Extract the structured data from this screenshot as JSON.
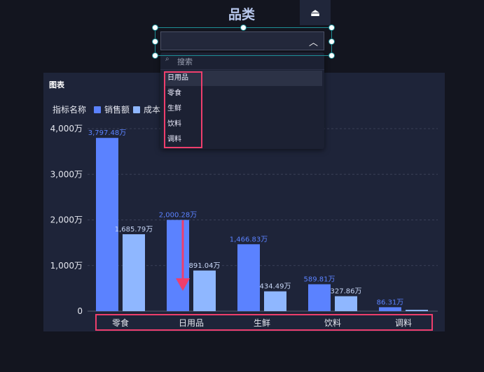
{
  "header": {
    "title": "品类",
    "icon": "clear-filter-icon"
  },
  "dropdown": {
    "value": "",
    "search_placeholder": "搜索",
    "options": [
      "日用品",
      "零食",
      "生鲜",
      "饮料",
      "调料"
    ],
    "hovered": "日用品"
  },
  "panel": {
    "title": "图表"
  },
  "colors": {
    "sales": "#5b82ff",
    "cost": "#8fb7ff",
    "highlight": "#ee3e6c"
  },
  "chart_data": {
    "type": "bar",
    "legend_title": "指标名称",
    "categories": [
      "零食",
      "日用品",
      "生鲜",
      "饮料",
      "调料"
    ],
    "series": [
      {
        "name": "销售额",
        "values": [
          3797.48,
          2000.28,
          1466.83,
          589.81,
          86.31
        ],
        "labels": [
          "3,797.48万",
          "2,000.28万",
          "1,466.83万",
          "589.81万",
          "86.31万"
        ]
      },
      {
        "name": "成本",
        "values": [
          1685.79,
          891.04,
          434.49,
          327.86,
          30
        ],
        "labels": [
          "1,685.79万",
          "891.04万",
          "434.49万",
          "327.86万",
          ""
        ]
      }
    ],
    "yticks": [
      "0",
      "1,000万",
      "2,000万",
      "3,000万",
      "4,000万"
    ],
    "ylim": [
      0,
      4000
    ],
    "legend_position": "top-left"
  }
}
